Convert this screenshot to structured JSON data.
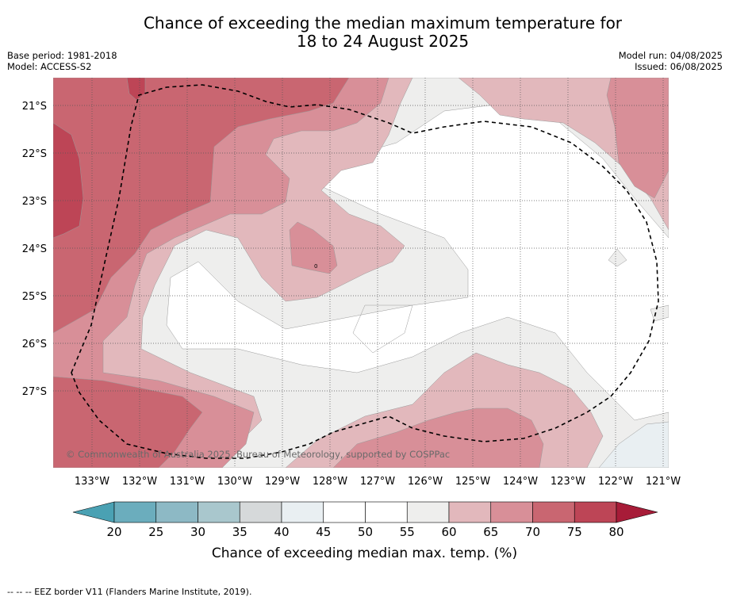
{
  "header": {
    "title_line1": "Chance of exceeding the median maximum temperature for",
    "title_line2": "18 to 24 August 2025",
    "base_period": "Base period: 1981-2018",
    "model": "Model: ACCESS-S2",
    "model_run": "Model run: 04/08/2025",
    "issued": "Issued: 06/08/2025"
  },
  "map": {
    "lat_labels": [
      "21°S",
      "22°S",
      "23°S",
      "24°S",
      "25°S",
      "26°S",
      "27°S"
    ],
    "lon_labels": [
      "133°W",
      "132°W",
      "131°W",
      "130°W",
      "129°W",
      "128°W",
      "127°W",
      "126°W",
      "125°W",
      "124°W",
      "123°W",
      "122°W",
      "121°W"
    ],
    "copyright": "© Commonwealth of Australia 2025, Bureau of Meteorology, supported by COSPPac",
    "contour_marker": "0"
  },
  "colorbar": {
    "ticks": [
      "20",
      "25",
      "30",
      "35",
      "40",
      "45",
      "50",
      "55",
      "60",
      "65",
      "70",
      "75",
      "80"
    ],
    "colors": [
      "#6badbd",
      "#8db9c5",
      "#a9c7cd",
      "#d6d9da",
      "#e9eff2",
      "#ffffff",
      "#ffffff",
      "#eeeeed",
      "#e2b8bc",
      "#d88f98",
      "#c96671",
      "#bd4556"
    ],
    "low_arrow_color": "#4aa1b3",
    "high_arrow_color": "#a71c38",
    "label": "Chance of exceeding median max. temp. (%)"
  },
  "footer": {
    "legend": "--  --  -- EEZ border V11 (Flanders Marine Institute, 2019)."
  }
}
